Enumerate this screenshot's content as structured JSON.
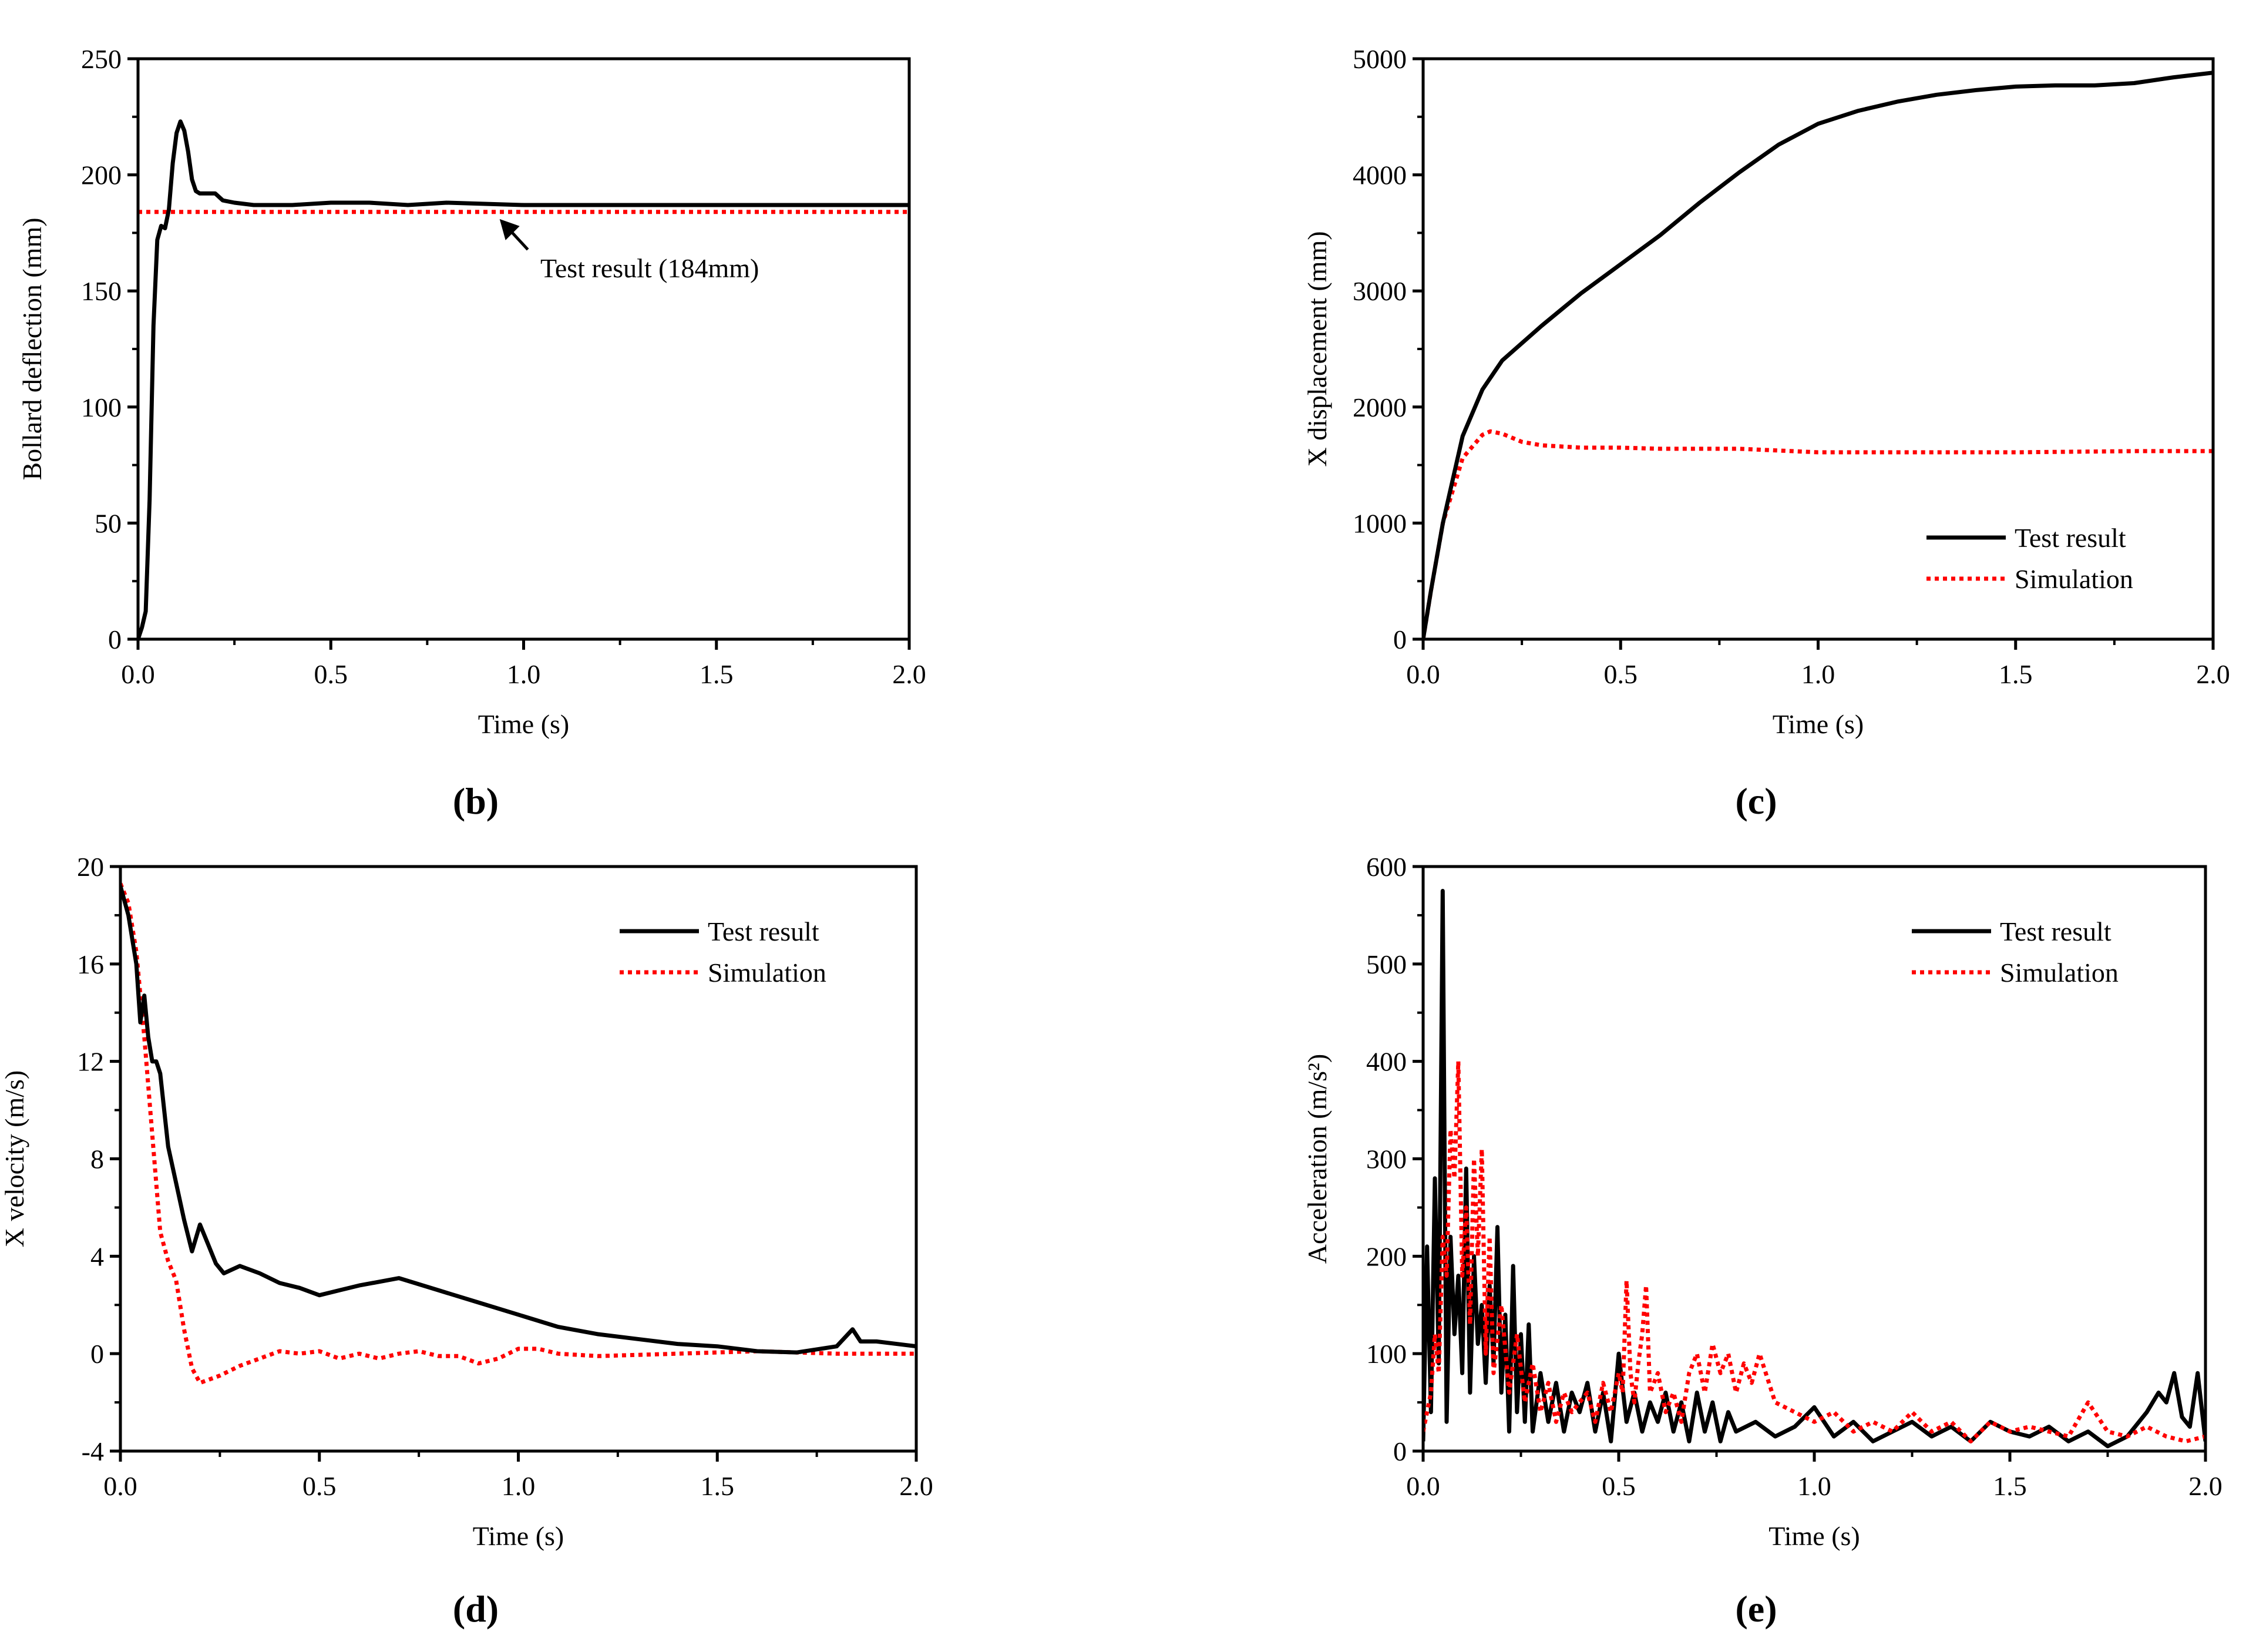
{
  "colors": {
    "test": "#000000",
    "simulation": "#ff0000",
    "axis": "#000000"
  },
  "chart_data": [
    {
      "id": "b",
      "type": "line",
      "panel_label": "(b)",
      "xlabel": "Time (s)",
      "ylabel": "Bollard deflection (mm)",
      "xlim": [
        0,
        2
      ],
      "ylim": [
        0,
        250
      ],
      "xticks": [
        0,
        0.5,
        1,
        1.5,
        2
      ],
      "xtick_labels": [
        "0.0",
        "0.5",
        "1.0",
        "1.5",
        "2.0"
      ],
      "yticks": [
        0,
        50,
        100,
        150,
        200,
        250
      ],
      "ytick_labels": [
        "0",
        "50",
        "100",
        "150",
        "200",
        "250"
      ],
      "annotation": {
        "text": "Test result (184mm)",
        "x": 0.95,
        "y": 184
      },
      "series": [
        {
          "name": "Test result",
          "style": "solid",
          "color": "#000000",
          "x": [
            0,
            0.01,
            0.02,
            0.03,
            0.04,
            0.05,
            0.06,
            0.07,
            0.08,
            0.09,
            0.1,
            0.11,
            0.12,
            0.13,
            0.14,
            0.15,
            0.16,
            0.18,
            0.2,
            0.22,
            0.25,
            0.3,
            0.4,
            0.5,
            0.6,
            0.7,
            0.8,
            1.0,
            1.2,
            1.5,
            1.8,
            2.0
          ],
          "y": [
            0,
            5,
            12,
            60,
            135,
            172,
            178,
            177,
            185,
            205,
            218,
            223,
            219,
            210,
            198,
            193,
            192,
            192,
            192,
            189,
            188,
            187,
            187,
            188,
            188,
            187,
            188,
            187,
            187,
            187,
            187,
            187
          ]
        },
        {
          "name": "Simulation",
          "style": "dotted",
          "color": "#ff0000",
          "x": [
            0,
            2
          ],
          "y": [
            184,
            184
          ]
        }
      ]
    },
    {
      "id": "c",
      "type": "line",
      "panel_label": "(c)",
      "xlabel": "Time (s)",
      "ylabel": "X displacement (mm)",
      "xlim": [
        0,
        2
      ],
      "ylim": [
        0,
        5000
      ],
      "xticks": [
        0,
        0.5,
        1,
        1.5,
        2
      ],
      "xtick_labels": [
        "0.0",
        "0.5",
        "1.0",
        "1.5",
        "2.0"
      ],
      "yticks": [
        0,
        1000,
        2000,
        3000,
        4000,
        5000
      ],
      "ytick_labels": [
        "0",
        "1000",
        "2000",
        "3000",
        "4000",
        "5000"
      ],
      "legend": {
        "position": "bottom-right",
        "entries": [
          "Test result",
          "Simulation"
        ]
      },
      "series": [
        {
          "name": "Test result",
          "style": "solid",
          "color": "#000000",
          "x": [
            0,
            0.02,
            0.05,
            0.1,
            0.15,
            0.2,
            0.3,
            0.4,
            0.5,
            0.6,
            0.7,
            0.8,
            0.9,
            1.0,
            1.1,
            1.2,
            1.3,
            1.4,
            1.5,
            1.6,
            1.7,
            1.8,
            1.9,
            2.0
          ],
          "y": [
            0,
            420,
            1000,
            1750,
            2150,
            2400,
            2700,
            2980,
            3230,
            3480,
            3760,
            4020,
            4260,
            4440,
            4550,
            4630,
            4690,
            4730,
            4760,
            4770,
            4770,
            4790,
            4840,
            4880
          ]
        },
        {
          "name": "Simulation",
          "style": "dotted",
          "color": "#ff0000",
          "x": [
            0,
            0.02,
            0.05,
            0.1,
            0.15,
            0.17,
            0.2,
            0.25,
            0.3,
            0.4,
            0.5,
            0.6,
            0.8,
            1.0,
            1.2,
            1.5,
            1.8,
            2.0
          ],
          "y": [
            0,
            420,
            1000,
            1560,
            1760,
            1790,
            1770,
            1700,
            1670,
            1650,
            1650,
            1640,
            1640,
            1610,
            1610,
            1610,
            1620,
            1620
          ]
        }
      ]
    },
    {
      "id": "d",
      "type": "line",
      "panel_label": "(d)",
      "xlabel": "Time (s)",
      "ylabel": "X velocity (m/s)",
      "xlim": [
        0,
        2
      ],
      "ylim": [
        -4,
        20
      ],
      "xticks": [
        0,
        0.5,
        1,
        1.5,
        2
      ],
      "xtick_labels": [
        "0.0",
        "0.5",
        "1.0",
        "1.5",
        "2.0"
      ],
      "yticks": [
        -4,
        0,
        4,
        8,
        12,
        16,
        20
      ],
      "ytick_labels": [
        "-4",
        "0",
        "4",
        "8",
        "12",
        "16",
        "20"
      ],
      "legend": {
        "position": "top-right",
        "entries": [
          "Test result",
          "Simulation"
        ]
      },
      "series": [
        {
          "name": "Test result",
          "style": "solid",
          "color": "#000000",
          "x": [
            0,
            0.02,
            0.04,
            0.05,
            0.06,
            0.07,
            0.08,
            0.09,
            0.1,
            0.12,
            0.14,
            0.16,
            0.18,
            0.2,
            0.22,
            0.24,
            0.26,
            0.3,
            0.35,
            0.4,
            0.45,
            0.5,
            0.55,
            0.6,
            0.7,
            0.8,
            0.9,
            1.0,
            1.1,
            1.2,
            1.3,
            1.4,
            1.5,
            1.6,
            1.7,
            1.8,
            1.84,
            1.86,
            1.9,
            2.0
          ],
          "y": [
            19.2,
            18,
            16,
            13.6,
            14.7,
            13,
            12,
            12,
            11.5,
            8.5,
            7,
            5.5,
            4.2,
            5.3,
            4.5,
            3.7,
            3.3,
            3.6,
            3.3,
            2.9,
            2.7,
            2.4,
            2.6,
            2.8,
            3.1,
            2.6,
            2.1,
            1.6,
            1.1,
            0.8,
            0.6,
            0.4,
            0.3,
            0.1,
            0.05,
            0.3,
            1.0,
            0.5,
            0.5,
            0.3
          ]
        },
        {
          "name": "Simulation",
          "style": "dotted",
          "color": "#ff0000",
          "x": [
            0,
            0.02,
            0.04,
            0.06,
            0.08,
            0.1,
            0.12,
            0.14,
            0.16,
            0.18,
            0.2,
            0.25,
            0.3,
            0.35,
            0.4,
            0.45,
            0.5,
            0.55,
            0.6,
            0.65,
            0.7,
            0.75,
            0.8,
            0.85,
            0.9,
            0.95,
            1.0,
            1.05,
            1.1,
            1.2,
            1.4,
            1.6,
            1.8,
            2.0
          ],
          "y": [
            19.3,
            18.5,
            16.5,
            13,
            9,
            5,
            3.8,
            3,
            1,
            -0.6,
            -1.2,
            -0.9,
            -0.5,
            -0.2,
            0.1,
            0,
            0.1,
            -0.2,
            0,
            -0.2,
            0,
            0.1,
            -0.1,
            -0.1,
            -0.4,
            -0.2,
            0.2,
            0.2,
            0,
            -0.1,
            0,
            0.1,
            0,
            0
          ]
        }
      ]
    },
    {
      "id": "e",
      "type": "line",
      "panel_label": "(e)",
      "xlabel": "Time (s)",
      "ylabel": "Acceleration (m/s²)",
      "xlim": [
        0,
        2
      ],
      "ylim": [
        0,
        600
      ],
      "xticks": [
        0,
        0.5,
        1,
        1.5,
        2
      ],
      "xtick_labels": [
        "0.0",
        "0.5",
        "1.0",
        "1.5",
        "2.0"
      ],
      "yticks": [
        0,
        100,
        200,
        300,
        400,
        500,
        600
      ],
      "ytick_labels": [
        "0",
        "100",
        "200",
        "300",
        "400",
        "500",
        "600"
      ],
      "legend": {
        "position": "top-right",
        "entries": [
          "Test result",
          "Simulation"
        ]
      },
      "series": [
        {
          "name": "Test result",
          "style": "solid",
          "color": "#000000",
          "x": [
            0,
            0.01,
            0.02,
            0.03,
            0.04,
            0.05,
            0.055,
            0.06,
            0.07,
            0.08,
            0.09,
            0.1,
            0.11,
            0.12,
            0.13,
            0.14,
            0.15,
            0.16,
            0.17,
            0.18,
            0.19,
            0.2,
            0.21,
            0.22,
            0.23,
            0.24,
            0.25,
            0.26,
            0.27,
            0.28,
            0.3,
            0.32,
            0.34,
            0.36,
            0.38,
            0.4,
            0.42,
            0.44,
            0.46,
            0.48,
            0.5,
            0.52,
            0.54,
            0.56,
            0.58,
            0.6,
            0.62,
            0.64,
            0.66,
            0.68,
            0.7,
            0.72,
            0.74,
            0.76,
            0.78,
            0.8,
            0.85,
            0.9,
            0.95,
            1.0,
            1.05,
            1.1,
            1.15,
            1.2,
            1.25,
            1.3,
            1.35,
            1.4,
            1.45,
            1.5,
            1.55,
            1.6,
            1.65,
            1.7,
            1.75,
            1.8,
            1.85,
            1.88,
            1.9,
            1.92,
            1.94,
            1.96,
            1.98,
            2.0
          ],
          "y": [
            10,
            210,
            40,
            280,
            90,
            575,
            300,
            30,
            220,
            120,
            180,
            80,
            290,
            60,
            200,
            110,
            150,
            70,
            170,
            90,
            230,
            60,
            140,
            20,
            190,
            40,
            120,
            30,
            130,
            20,
            80,
            30,
            70,
            20,
            60,
            40,
            70,
            20,
            60,
            10,
            100,
            30,
            60,
            20,
            50,
            30,
            60,
            20,
            50,
            10,
            60,
            20,
            50,
            10,
            40,
            20,
            30,
            15,
            25,
            45,
            15,
            30,
            10,
            20,
            30,
            15,
            25,
            10,
            30,
            20,
            15,
            25,
            10,
            20,
            5,
            15,
            40,
            60,
            50,
            80,
            35,
            25,
            80,
            10
          ]
        },
        {
          "name": "Simulation",
          "style": "dotted",
          "color": "#ff0000",
          "x": [
            0,
            0.02,
            0.03,
            0.04,
            0.05,
            0.06,
            0.07,
            0.08,
            0.09,
            0.1,
            0.11,
            0.12,
            0.13,
            0.14,
            0.15,
            0.16,
            0.17,
            0.18,
            0.2,
            0.22,
            0.24,
            0.26,
            0.28,
            0.3,
            0.32,
            0.34,
            0.36,
            0.38,
            0.4,
            0.42,
            0.44,
            0.46,
            0.48,
            0.5,
            0.51,
            0.52,
            0.53,
            0.54,
            0.55,
            0.56,
            0.57,
            0.58,
            0.6,
            0.62,
            0.64,
            0.66,
            0.68,
            0.7,
            0.72,
            0.74,
            0.76,
            0.78,
            0.8,
            0.82,
            0.84,
            0.86,
            0.9,
            0.95,
            1.0,
            1.05,
            1.1,
            1.15,
            1.2,
            1.25,
            1.3,
            1.35,
            1.4,
            1.45,
            1.5,
            1.55,
            1.6,
            1.65,
            1.7,
            1.75,
            1.8,
            1.85,
            1.9,
            1.95,
            2.0
          ],
          "y": [
            20,
            60,
            120,
            80,
            220,
            180,
            330,
            280,
            400,
            180,
            250,
            130,
            300,
            200,
            310,
            100,
            220,
            80,
            150,
            60,
            120,
            50,
            90,
            40,
            70,
            30,
            60,
            40,
            50,
            60,
            30,
            70,
            40,
            80,
            60,
            175,
            80,
            50,
            90,
            120,
            170,
            60,
            80,
            40,
            60,
            30,
            80,
            100,
            60,
            110,
            80,
            100,
            60,
            90,
            70,
            100,
            50,
            40,
            30,
            40,
            20,
            30,
            20,
            40,
            20,
            30,
            10,
            30,
            20,
            25,
            20,
            15,
            50,
            20,
            15,
            25,
            15,
            10,
            15
          ]
        }
      ]
    }
  ]
}
